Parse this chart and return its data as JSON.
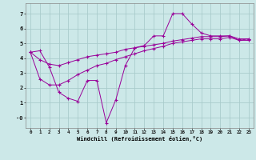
{
  "bg_color": "#cce8e8",
  "grid_color": "#aacccc",
  "line_color": "#990099",
  "xlabel": "Windchill (Refroidissement éolien,°C)",
  "xlim": [
    -0.5,
    23.5
  ],
  "ylim": [
    -0.7,
    7.7
  ],
  "ytick_values": [
    0,
    1,
    2,
    3,
    4,
    5,
    6,
    7
  ],
  "ytick_labels": [
    "-0",
    "1",
    "2",
    "3",
    "4",
    "5",
    "6",
    "7"
  ],
  "line1_x": [
    0,
    1,
    2,
    3,
    4,
    5,
    6,
    7,
    8,
    9,
    10,
    11,
    12,
    13,
    14,
    15,
    16,
    17,
    18,
    19,
    20,
    21,
    22,
    23
  ],
  "line1_y": [
    4.4,
    4.5,
    3.4,
    1.7,
    1.3,
    1.1,
    2.5,
    2.5,
    -0.35,
    1.2,
    3.5,
    4.7,
    4.85,
    5.5,
    5.5,
    7.0,
    7.0,
    6.3,
    5.7,
    5.5,
    5.5,
    5.5,
    5.2,
    5.3
  ],
  "line2_x": [
    0,
    1,
    2,
    3,
    4,
    5,
    6,
    7,
    8,
    9,
    10,
    11,
    12,
    13,
    14,
    15,
    16,
    17,
    18,
    19,
    20,
    21,
    22,
    23
  ],
  "line2_y": [
    4.4,
    3.9,
    3.6,
    3.5,
    3.7,
    3.9,
    4.1,
    4.2,
    4.3,
    4.4,
    4.6,
    4.7,
    4.8,
    4.9,
    5.0,
    5.15,
    5.25,
    5.35,
    5.45,
    5.45,
    5.45,
    5.5,
    5.3,
    5.3
  ],
  "line3_x": [
    0,
    1,
    2,
    3,
    4,
    5,
    6,
    7,
    8,
    9,
    10,
    11,
    12,
    13,
    14,
    15,
    16,
    17,
    18,
    19,
    20,
    21,
    22,
    23
  ],
  "line3_y": [
    4.4,
    2.6,
    2.2,
    2.2,
    2.5,
    2.9,
    3.2,
    3.5,
    3.65,
    3.9,
    4.1,
    4.3,
    4.5,
    4.65,
    4.8,
    5.0,
    5.1,
    5.2,
    5.3,
    5.3,
    5.3,
    5.4,
    5.2,
    5.2
  ]
}
